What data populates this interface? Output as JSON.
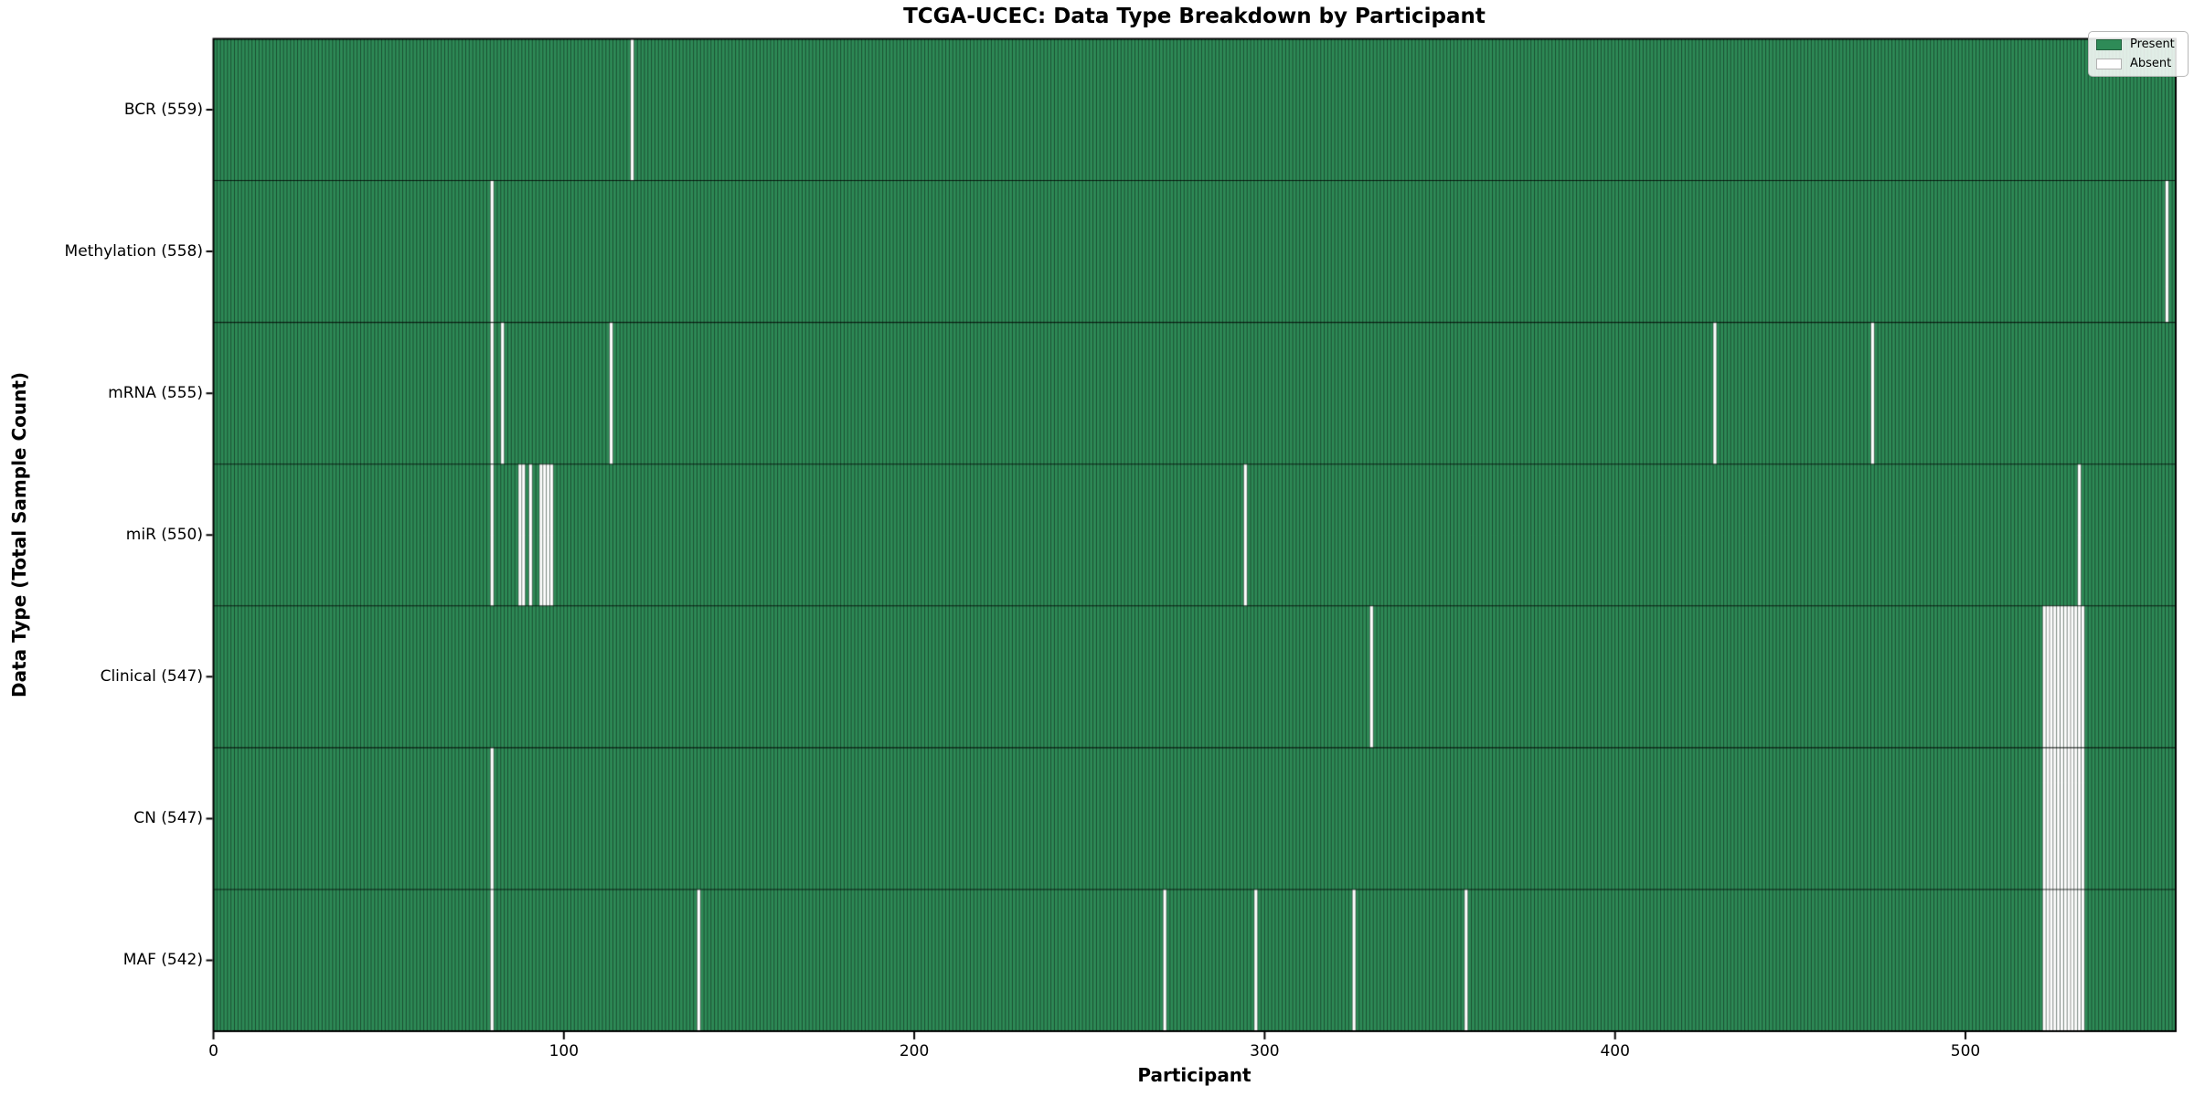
{
  "figure": {
    "background": "#ffffff"
  },
  "chart_data": {
    "type": "heatmap",
    "title": "TCGA-UCEC: Data Type Breakdown by Participant",
    "xlabel": "Participant",
    "ylabel": "Data Type (Total Sample Count)",
    "x_ticks": [
      0,
      100,
      200,
      300,
      400,
      500
    ],
    "x_range": [
      0,
      560
    ],
    "n_participants": 560,
    "grid": false,
    "legend_position": "upper right",
    "legend": [
      {
        "label": "Present",
        "color": "#2e8b57"
      },
      {
        "label": "Absent",
        "color": "#ffffff"
      }
    ],
    "colors": {
      "present": "#2e8b57",
      "absent": "#ffffff",
      "cell_edge": "#000000",
      "cell_edge_alpha": 0.5,
      "row_divider": "#000000",
      "row_divider_alpha": 0.75,
      "spine": "#000000",
      "tick": "#000000"
    },
    "rows": [
      {
        "label": "BCR (559)",
        "name": "BCR",
        "total": 559,
        "absent": [
          119
        ]
      },
      {
        "label": "Methylation (558)",
        "name": "Methylation",
        "total": 558,
        "absent": [
          79,
          557
        ]
      },
      {
        "label": "mRNA (555)",
        "name": "mRNA",
        "total": 555,
        "absent": [
          79,
          82,
          113,
          428,
          473
        ]
      },
      {
        "label": "miR (550)",
        "name": "miR",
        "total": 550,
        "absent": [
          79,
          87,
          88,
          90,
          93,
          94,
          95,
          96,
          294,
          532
        ]
      },
      {
        "label": "Clinical (547)",
        "name": "Clinical",
        "total": 547,
        "absent": [
          330,
          522,
          523,
          524,
          525,
          526,
          527,
          528,
          529,
          530,
          531,
          532,
          533
        ]
      },
      {
        "label": "CN (547)",
        "name": "CN",
        "total": 547,
        "absent": [
          79,
          522,
          523,
          524,
          525,
          526,
          527,
          528,
          529,
          530,
          531,
          532,
          533
        ]
      },
      {
        "label": "MAF (542)",
        "name": "MAF",
        "total": 542,
        "absent": [
          79,
          138,
          271,
          297,
          325,
          357,
          522,
          523,
          524,
          525,
          526,
          527,
          528,
          529,
          530,
          531,
          532,
          533
        ]
      }
    ]
  }
}
